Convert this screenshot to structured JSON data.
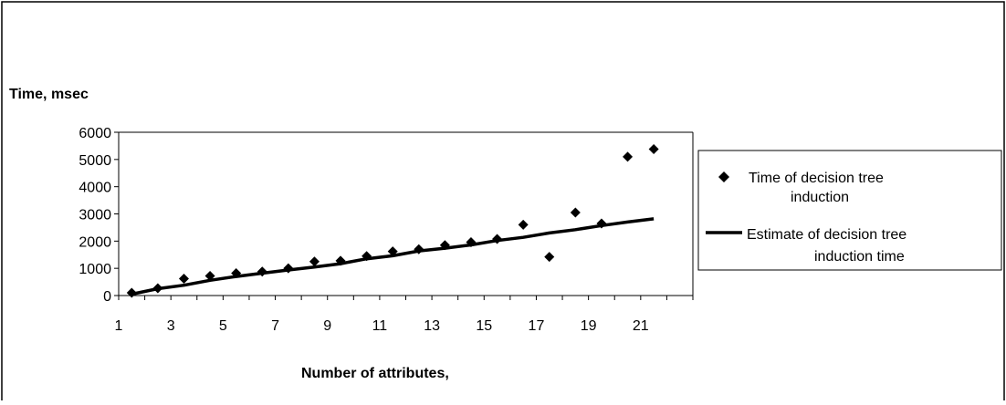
{
  "chart_data": {
    "type": "scatter",
    "xlabel": "Number of attributes,",
    "ylabel": "Time, msec",
    "xlim": [
      1,
      22
    ],
    "ylim": [
      0,
      6000
    ],
    "y_ticks": [
      0,
      1000,
      2000,
      3000,
      4000,
      5000,
      6000
    ],
    "x_tick_labels": [
      1,
      3,
      5,
      7,
      9,
      11,
      13,
      15,
      17,
      19,
      21
    ],
    "grid": false,
    "legend_position": "right",
    "series": [
      {
        "name": "Time of decision tree induction",
        "kind": "scatter",
        "marker": "diamond",
        "color": "#000000",
        "x": [
          1.5,
          2.5,
          3.5,
          4.5,
          5.5,
          6.5,
          7.5,
          8.5,
          9.5,
          10.5,
          11.5,
          12.5,
          13.5,
          14.5,
          15.5,
          16.5,
          17.5,
          18.5,
          19.5,
          20.5,
          21.5
        ],
        "y": [
          100,
          270,
          620,
          720,
          820,
          880,
          1000,
          1250,
          1280,
          1450,
          1620,
          1700,
          1850,
          1960,
          2080,
          2600,
          1420,
          3050,
          2650,
          5100,
          5380
        ]
      },
      {
        "name": "Estimate of decision tree induction time",
        "kind": "line",
        "color": "#000000",
        "x": [
          1.5,
          2.5,
          3.5,
          4.5,
          5.5,
          6.5,
          7.5,
          8.5,
          9.5,
          10.5,
          11.5,
          12.5,
          13.5,
          14.5,
          15.5,
          16.5,
          17.5,
          18.5,
          19.5,
          20.5,
          21.5
        ],
        "y": [
          50,
          250,
          380,
          560,
          700,
          820,
          940,
          1050,
          1170,
          1350,
          1460,
          1640,
          1740,
          1860,
          2020,
          2140,
          2300,
          2420,
          2570,
          2700,
          2820
        ]
      }
    ]
  }
}
